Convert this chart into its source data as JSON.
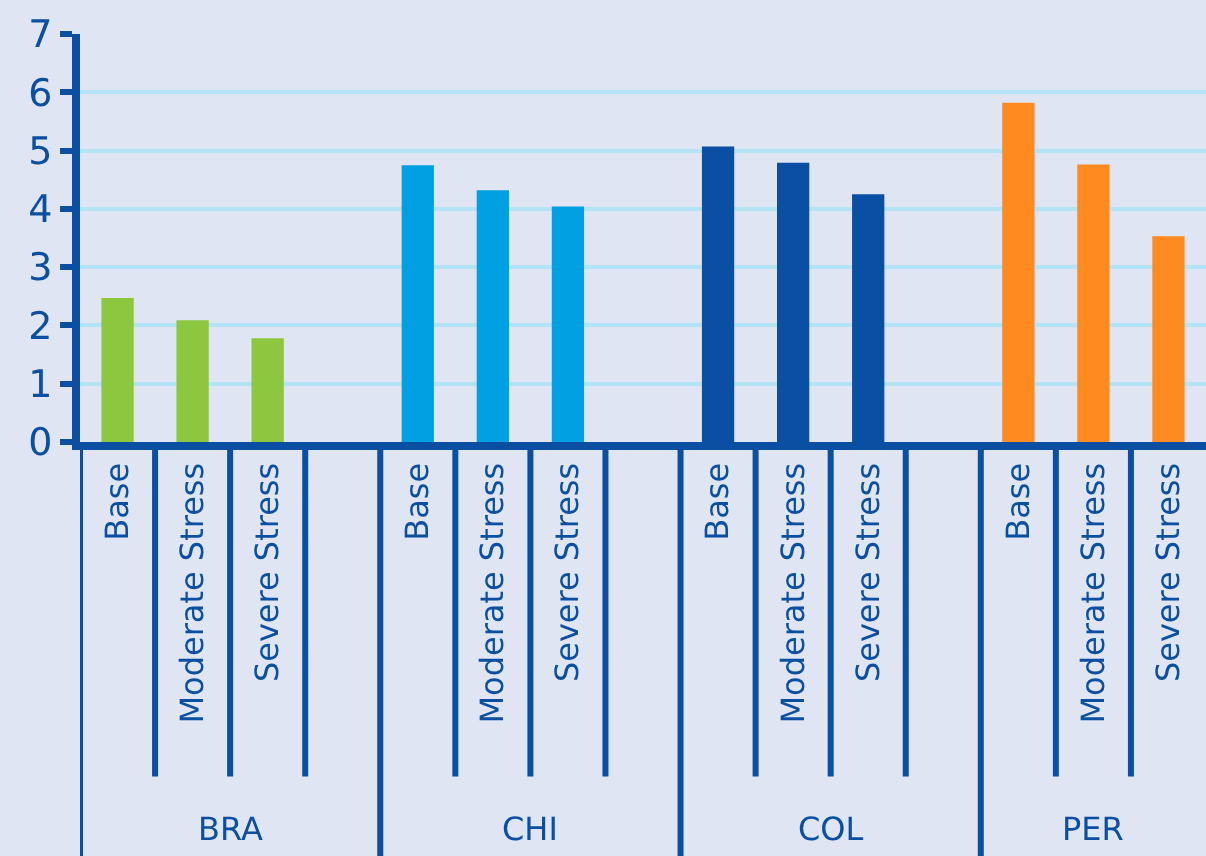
{
  "chart_data": {
    "type": "bar",
    "categories": [
      "Base",
      "Moderate Stress",
      "Severe Stress",
      null,
      "Base",
      "Moderate Stress",
      "Severe Stress",
      null,
      "Base",
      "Moderate Stress",
      "Severe Stress",
      null,
      "Base",
      "Moderate Stress",
      "Severe Stress"
    ],
    "series": [
      {
        "color": "#8dc63f",
        "values": [
          2.47,
          2.09,
          1.78,
          null,
          null,
          null,
          null,
          null,
          null,
          null,
          null,
          null,
          null,
          null,
          null
        ]
      },
      {
        "color": "#00a0e3",
        "values": [
          null,
          null,
          null,
          null,
          4.75,
          4.32,
          4.04,
          null,
          null,
          null,
          null,
          null,
          null,
          null,
          null
        ]
      },
      {
        "color": "#0a4fa3",
        "values": [
          null,
          null,
          null,
          null,
          null,
          null,
          null,
          null,
          5.07,
          4.79,
          4.25,
          null,
          null,
          null,
          null
        ]
      },
      {
        "color": "#ff8a1f",
        "values": [
          null,
          null,
          null,
          null,
          null,
          null,
          null,
          null,
          null,
          null,
          null,
          null,
          5.82,
          4.76,
          3.53
        ]
      }
    ],
    "annotations": [
      "BRA",
      "CHI",
      "COL",
      "PER"
    ],
    "ylim": [
      0,
      7
    ],
    "yticks": [
      0,
      1,
      2,
      3,
      4,
      5,
      6,
      7
    ],
    "grid": "y",
    "legend": false
  }
}
